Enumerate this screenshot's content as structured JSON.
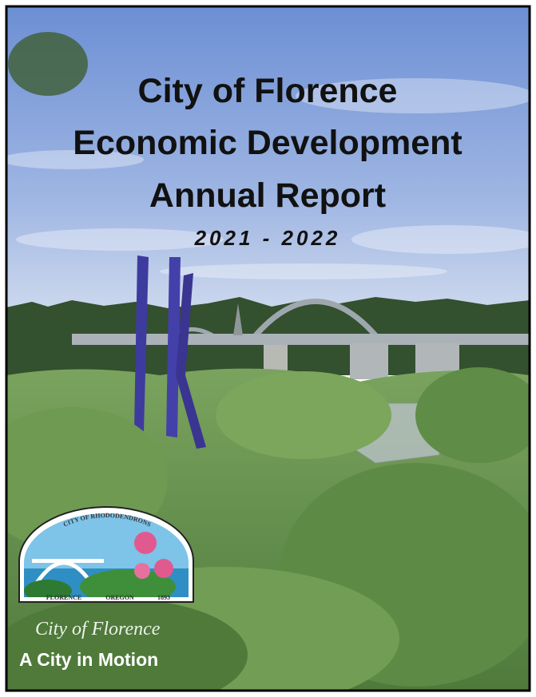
{
  "cover": {
    "title_lines": [
      "City of Florence",
      "Economic Development",
      "Annual Report"
    ],
    "years": "2021 - 2022",
    "logo": {
      "arc_text": "CITY OF RHODODENDRONS",
      "left": "FLORENCE",
      "center": "OREGON",
      "right": "1893"
    },
    "script_name": "City of Florence",
    "tagline": "A City in Motion"
  }
}
